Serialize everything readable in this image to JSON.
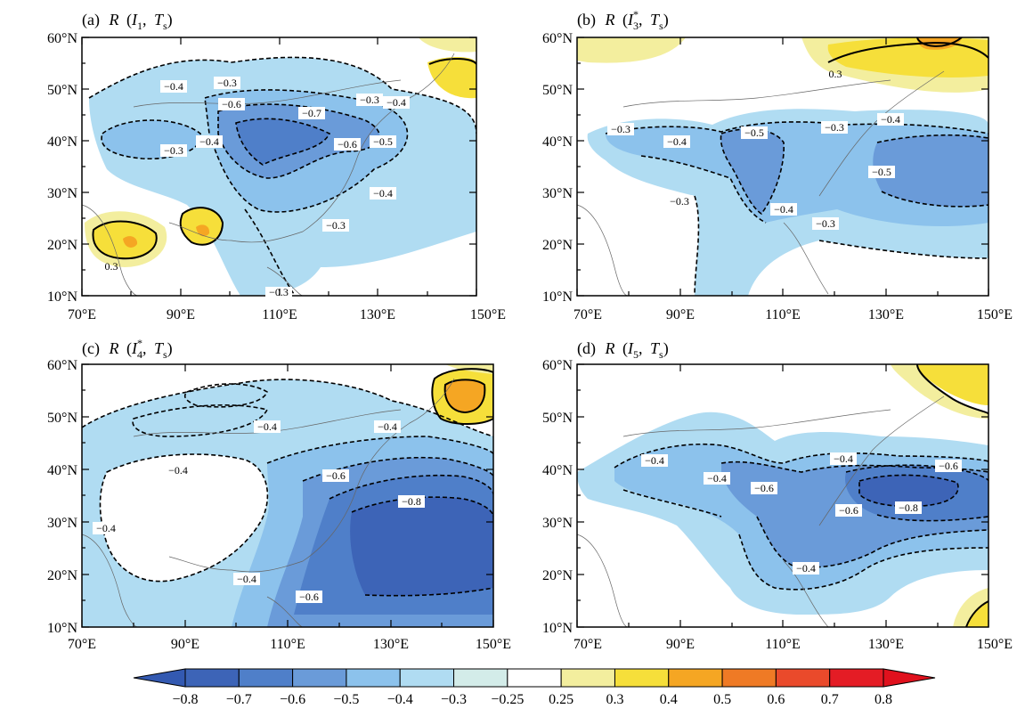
{
  "panels": [
    {
      "id": "a",
      "title": {
        "prefix": "(a)",
        "var": "R",
        "open": "(",
        "index_var": "I",
        "index_sub": "1",
        "index_sup": "",
        "sep": ",",
        "field_var": "T",
        "field_sub": "s",
        "close": ")"
      },
      "contour_labels": [
        "−0.4",
        "−0.3",
        "−0.6",
        "−0.7",
        "−0.3",
        "−0.4",
        "−0.4",
        "−0.6",
        "−0.5",
        "−0.3",
        "−0.4",
        "−0.3",
        "0.3",
        "−0.3"
      ]
    },
    {
      "id": "b",
      "title": {
        "prefix": "(b)",
        "var": "R",
        "open": "(",
        "index_var": "I",
        "index_sub": "3",
        "index_sup": "*",
        "sep": ",",
        "field_var": "T",
        "field_sub": "s",
        "close": ")"
      },
      "contour_labels": [
        "0.3",
        "−0.3",
        "−0.4",
        "−0.5",
        "−0.3",
        "−0.4",
        "−0.5",
        "−0.3",
        "−0.4",
        "−0.3"
      ]
    },
    {
      "id": "c",
      "title": {
        "prefix": "(c)",
        "var": "R",
        "open": "(",
        "index_var": "I",
        "index_sub": "4",
        "index_sup": "*",
        "sep": ",",
        "field_var": "T",
        "field_sub": "s",
        "close": ")"
      },
      "contour_labels": [
        "−0.4",
        "−0.4",
        "−0.4",
        "−0.6",
        "−0.8",
        "−0.4",
        "−0.4",
        "−0.6"
      ]
    },
    {
      "id": "d",
      "title": {
        "prefix": "(d)",
        "var": "R",
        "open": "(",
        "index_var": "I",
        "index_sub": "5",
        "index_sup": "",
        "sep": ",",
        "field_var": "T",
        "field_sub": "s",
        "close": ")"
      },
      "contour_labels": [
        "−0.4",
        "−0.4",
        "−0.6",
        "−0.4",
        "−0.6",
        "−0.6",
        "−0.8",
        "−0.4"
      ]
    }
  ],
  "axes": {
    "lat_labels": [
      "60°N",
      "50°N",
      "40°N",
      "30°N",
      "20°N",
      "10°N"
    ],
    "lon_labels": [
      "70°E",
      "90°E",
      "110°E",
      "130°E",
      "150°E"
    ],
    "lon_range": [
      70,
      150
    ],
    "lat_range": [
      10,
      60
    ]
  },
  "colorbar": {
    "labels": [
      "−0.8",
      "−0.7",
      "−0.6",
      "−0.5",
      "−0.4",
      "−0.3",
      "−0.25",
      "0.25",
      "0.3",
      "0.4",
      "0.5",
      "0.6",
      "0.7",
      "0.8"
    ],
    "colors": [
      "#3d64b7",
      "#4f7fc9",
      "#6a9bd9",
      "#8cc2ec",
      "#b0dcf2",
      "#d3ece9",
      "#ffffff",
      "#f3ee9e",
      "#f6df3a",
      "#f5a623",
      "#ef7a25",
      "#ea4a2b",
      "#e41c25"
    ],
    "under_color": "#3359b1",
    "over_color": "#e0111d"
  }
}
